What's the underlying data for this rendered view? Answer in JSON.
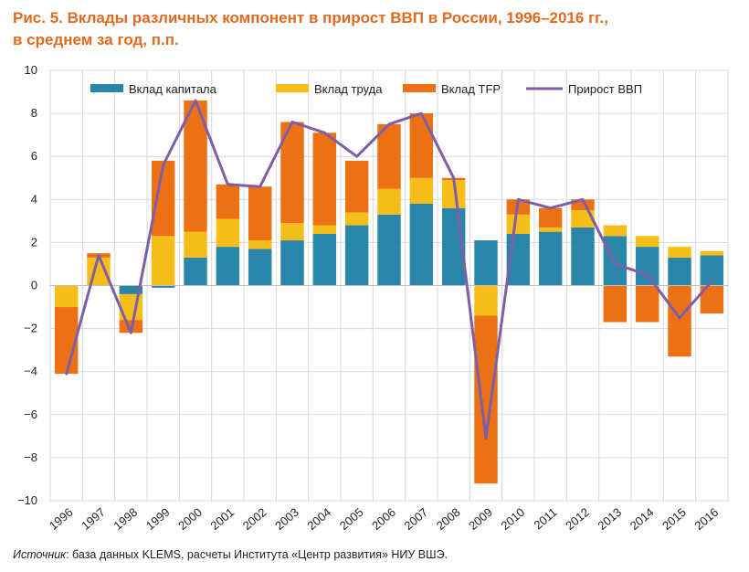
{
  "title_line1": "Рис. 5. Вклады различных компонент в прирост ВВП в России, 1996–2016 гг.,",
  "title_line2": "в среднем за год, п.п.",
  "source_label": "Источник",
  "source_text": ": база данных KLEMS, расчеты Института «Центр развития» НИУ ВШЭ.",
  "colors": {
    "capital": "#2a86a8",
    "labor": "#f7bd18",
    "tfp": "#ec7014",
    "gdp": "#7f5ea8",
    "grid": "#d9d9d9",
    "axis": "#bfbfbf",
    "title": "#e06a1f"
  },
  "chart_data": {
    "type": "bar",
    "stacked": true,
    "categories": [
      "1996",
      "1997",
      "1998",
      "1999",
      "2000",
      "2001",
      "2002",
      "2003",
      "2004",
      "2005",
      "2006",
      "2007",
      "2008",
      "2009",
      "2010",
      "2011",
      "2012",
      "2013",
      "2014",
      "2015",
      "2016"
    ],
    "series": [
      {
        "name": "Вклад капитала",
        "type": "bar",
        "values": [
          0,
          0,
          -0.4,
          -0.1,
          1.3,
          1.8,
          1.7,
          2.1,
          2.4,
          2.8,
          3.3,
          3.8,
          3.6,
          2.1,
          2.4,
          2.5,
          2.7,
          2.3,
          1.8,
          1.3,
          1.4
        ]
      },
      {
        "name": "Вклад труда",
        "type": "bar",
        "values": [
          -1.0,
          1.3,
          -1.2,
          2.3,
          1.2,
          1.3,
          0.4,
          0.8,
          0.4,
          0.6,
          1.2,
          1.2,
          1.3,
          -1.4,
          0.9,
          0.2,
          0.8,
          0.5,
          0.5,
          0.5,
          0.2
        ]
      },
      {
        "name": "Вклад TFP",
        "type": "bar",
        "values": [
          -3.1,
          0.2,
          -0.6,
          3.5,
          6.1,
          1.6,
          2.5,
          4.7,
          4.3,
          2.4,
          3.0,
          3.0,
          0.1,
          -7.8,
          0.7,
          0.9,
          0.5,
          -1.7,
          -1.7,
          -3.3,
          -1.3
        ]
      },
      {
        "name": "Прирост ВВП",
        "type": "line",
        "values": [
          -4.1,
          1.4,
          -2.2,
          5.6,
          8.6,
          4.7,
          4.6,
          7.6,
          7.1,
          6.0,
          7.5,
          8.0,
          5.0,
          -7.1,
          4.0,
          3.6,
          4.0,
          1.0,
          0.5,
          -1.5,
          0.2
        ]
      }
    ],
    "xlabel": "",
    "ylabel": "",
    "ylim": [
      -10,
      10
    ],
    "yticks": [
      -10,
      -8,
      -6,
      -4,
      -2,
      0,
      2,
      4,
      6,
      8,
      10
    ],
    "grid": true,
    "legend": "top"
  }
}
